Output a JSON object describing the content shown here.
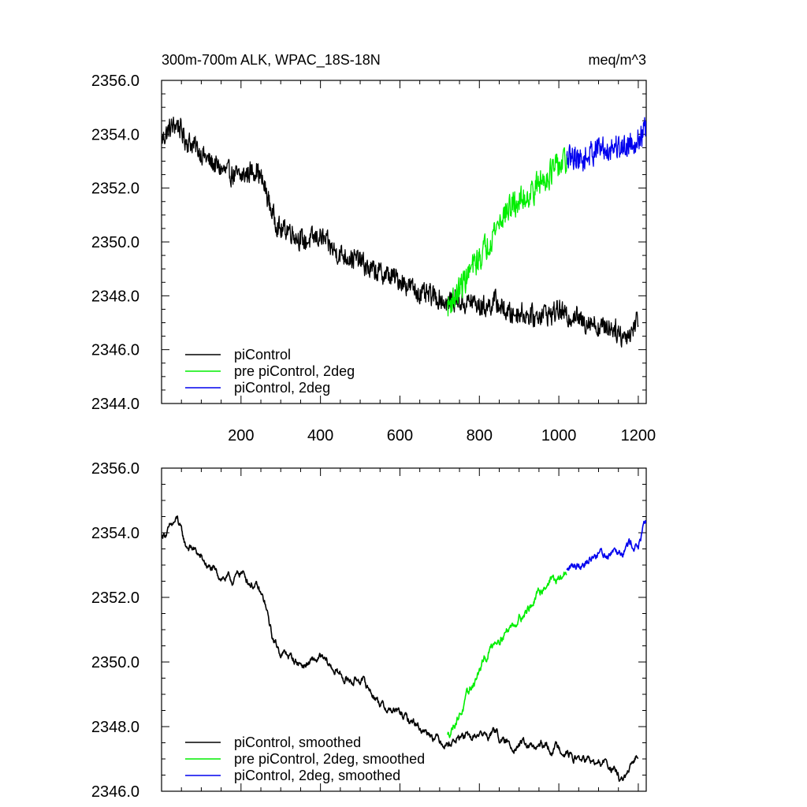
{
  "chart_data": [
    {
      "type": "line",
      "title": "300m-700m ALK, WPAC_18S-18N",
      "units_label": "meq/m^3",
      "xlabel": "",
      "ylabel": "",
      "xlim": [
        0,
        1220
      ],
      "ylim": [
        2344.0,
        2356.0
      ],
      "x_ticks": [
        200,
        400,
        600,
        800,
        1000,
        1200
      ],
      "x_tick_labels": [
        "200",
        "400",
        "600",
        "800",
        "1000",
        "1200"
      ],
      "y_ticks": [
        2344.0,
        2346.0,
        2348.0,
        2350.0,
        2352.0,
        2354.0,
        2356.0
      ],
      "y_tick_labels": [
        "2344.0",
        "2346.0",
        "2348.0",
        "2350.0",
        "2352.0",
        "2354.0",
        "2356.0"
      ],
      "legend_position": "bottom-left",
      "series": [
        {
          "name": "piControl",
          "color": "#000000",
          "x": [
            1,
            20,
            40,
            60,
            80,
            100,
            120,
            140,
            160,
            180,
            200,
            220,
            240,
            260,
            280,
            300,
            320,
            340,
            360,
            380,
            400,
            420,
            440,
            460,
            480,
            500,
            520,
            540,
            560,
            580,
            600,
            620,
            640,
            660,
            680,
            700,
            720,
            740,
            760,
            780,
            800,
            820,
            840,
            860,
            880,
            900,
            920,
            940,
            960,
            980,
            1000,
            1020,
            1040,
            1060,
            1080,
            1100,
            1120,
            1140,
            1160,
            1180,
            1200
          ],
          "values": [
            2353.8,
            2354.2,
            2354.4,
            2353.8,
            2353.6,
            2353.3,
            2353.0,
            2352.8,
            2352.6,
            2352.5,
            2352.4,
            2352.6,
            2352.7,
            2352.0,
            2351.0,
            2350.4,
            2350.5,
            2350.2,
            2350.0,
            2350.1,
            2350.2,
            2349.9,
            2349.6,
            2349.5,
            2349.4,
            2349.3,
            2349.0,
            2348.9,
            2348.8,
            2348.7,
            2348.6,
            2348.4,
            2348.2,
            2348.0,
            2348.0,
            2347.9,
            2347.7,
            2347.9,
            2347.7,
            2347.8,
            2347.6,
            2347.6,
            2347.8,
            2347.5,
            2347.3,
            2347.4,
            2347.3,
            2347.2,
            2347.4,
            2347.3,
            2347.5,
            2347.2,
            2347.3,
            2347.0,
            2347.1,
            2346.8,
            2346.9,
            2346.8,
            2346.5,
            2346.6,
            2347.2
          ],
          "noise": 0.55
        },
        {
          "name": "pre piControl, 2deg",
          "color": "#00ee00",
          "x": [
            720,
            740,
            760,
            780,
            800,
            820,
            840,
            860,
            880,
            900,
            920,
            940,
            960,
            980,
            1000,
            1020
          ],
          "values": [
            2347.6,
            2348.0,
            2348.5,
            2349.0,
            2349.4,
            2349.9,
            2350.5,
            2351.0,
            2351.3,
            2351.5,
            2351.7,
            2352.0,
            2352.3,
            2352.6,
            2352.8,
            2353.0
          ],
          "noise": 0.7
        },
        {
          "name": "piControl, 2deg",
          "color": "#0000ee",
          "x": [
            1020,
            1040,
            1060,
            1080,
            1100,
            1120,
            1140,
            1160,
            1180,
            1200,
            1220
          ],
          "values": [
            2353.0,
            2353.2,
            2353.0,
            2353.3,
            2353.5,
            2353.4,
            2353.6,
            2353.5,
            2353.7,
            2353.8,
            2354.2
          ],
          "noise": 0.65
        }
      ]
    },
    {
      "type": "line",
      "title": "",
      "xlabel": "",
      "ylabel": "",
      "xlim": [
        0,
        1220
      ],
      "ylim": [
        2346.0,
        2356.0
      ],
      "x_ticks": [
        200,
        400,
        600,
        800,
        1000,
        1200
      ],
      "x_tick_labels": [],
      "y_ticks": [
        2346.0,
        2348.0,
        2350.0,
        2352.0,
        2354.0,
        2356.0
      ],
      "y_tick_labels": [
        "2346.0",
        "2348.0",
        "2350.0",
        "2352.0",
        "2354.0",
        "2356.0"
      ],
      "legend_position": "bottom-left",
      "series": [
        {
          "name": "piControl, smoothed",
          "color": "#000000",
          "x": [
            1,
            20,
            40,
            60,
            80,
            100,
            120,
            140,
            160,
            180,
            200,
            220,
            240,
            260,
            280,
            300,
            320,
            340,
            360,
            380,
            400,
            420,
            440,
            460,
            480,
            500,
            520,
            540,
            560,
            580,
            600,
            620,
            640,
            660,
            680,
            700,
            720,
            740,
            760,
            780,
            800,
            820,
            840,
            860,
            880,
            900,
            920,
            940,
            960,
            980,
            1000,
            1020,
            1040,
            1060,
            1080,
            1100,
            1120,
            1140,
            1160,
            1180,
            1200
          ],
          "values": [
            2353.9,
            2354.1,
            2354.4,
            2353.6,
            2353.5,
            2353.2,
            2352.9,
            2352.7,
            2352.6,
            2352.5,
            2352.8,
            2352.5,
            2352.3,
            2351.8,
            2350.7,
            2350.3,
            2350.2,
            2350.0,
            2349.9,
            2350.0,
            2350.1,
            2349.9,
            2349.7,
            2349.5,
            2349.4,
            2349.5,
            2349.2,
            2348.9,
            2348.6,
            2348.5,
            2348.4,
            2348.2,
            2348.1,
            2347.9,
            2347.8,
            2347.6,
            2347.5,
            2347.6,
            2347.7,
            2347.6,
            2347.8,
            2347.7,
            2347.9,
            2347.5,
            2347.4,
            2347.5,
            2347.4,
            2347.3,
            2347.4,
            2347.3,
            2347.4,
            2347.2,
            2347.0,
            2347.0,
            2346.9,
            2346.8,
            2346.9,
            2346.6,
            2346.3,
            2346.6,
            2347.2
          ],
          "noise": 0.18
        },
        {
          "name": "pre piControl, 2deg, smoothed",
          "color": "#00ee00",
          "x": [
            720,
            740,
            760,
            780,
            800,
            820,
            840,
            860,
            880,
            900,
            920,
            940,
            960,
            980,
            1000,
            1020
          ],
          "values": [
            2347.7,
            2348.2,
            2348.6,
            2349.2,
            2349.7,
            2350.2,
            2350.7,
            2350.9,
            2351.1,
            2351.4,
            2351.6,
            2351.9,
            2352.3,
            2352.6,
            2352.5,
            2352.8
          ],
          "noise": 0.2
        },
        {
          "name": "piControl, 2deg, smoothed",
          "color": "#0000ee",
          "x": [
            1020,
            1040,
            1060,
            1080,
            1100,
            1120,
            1140,
            1160,
            1180,
            1200,
            1220
          ],
          "values": [
            2352.8,
            2353.0,
            2353.1,
            2353.2,
            2353.4,
            2353.3,
            2353.6,
            2353.5,
            2353.7,
            2353.6,
            2354.3
          ],
          "noise": 0.2
        }
      ]
    }
  ]
}
